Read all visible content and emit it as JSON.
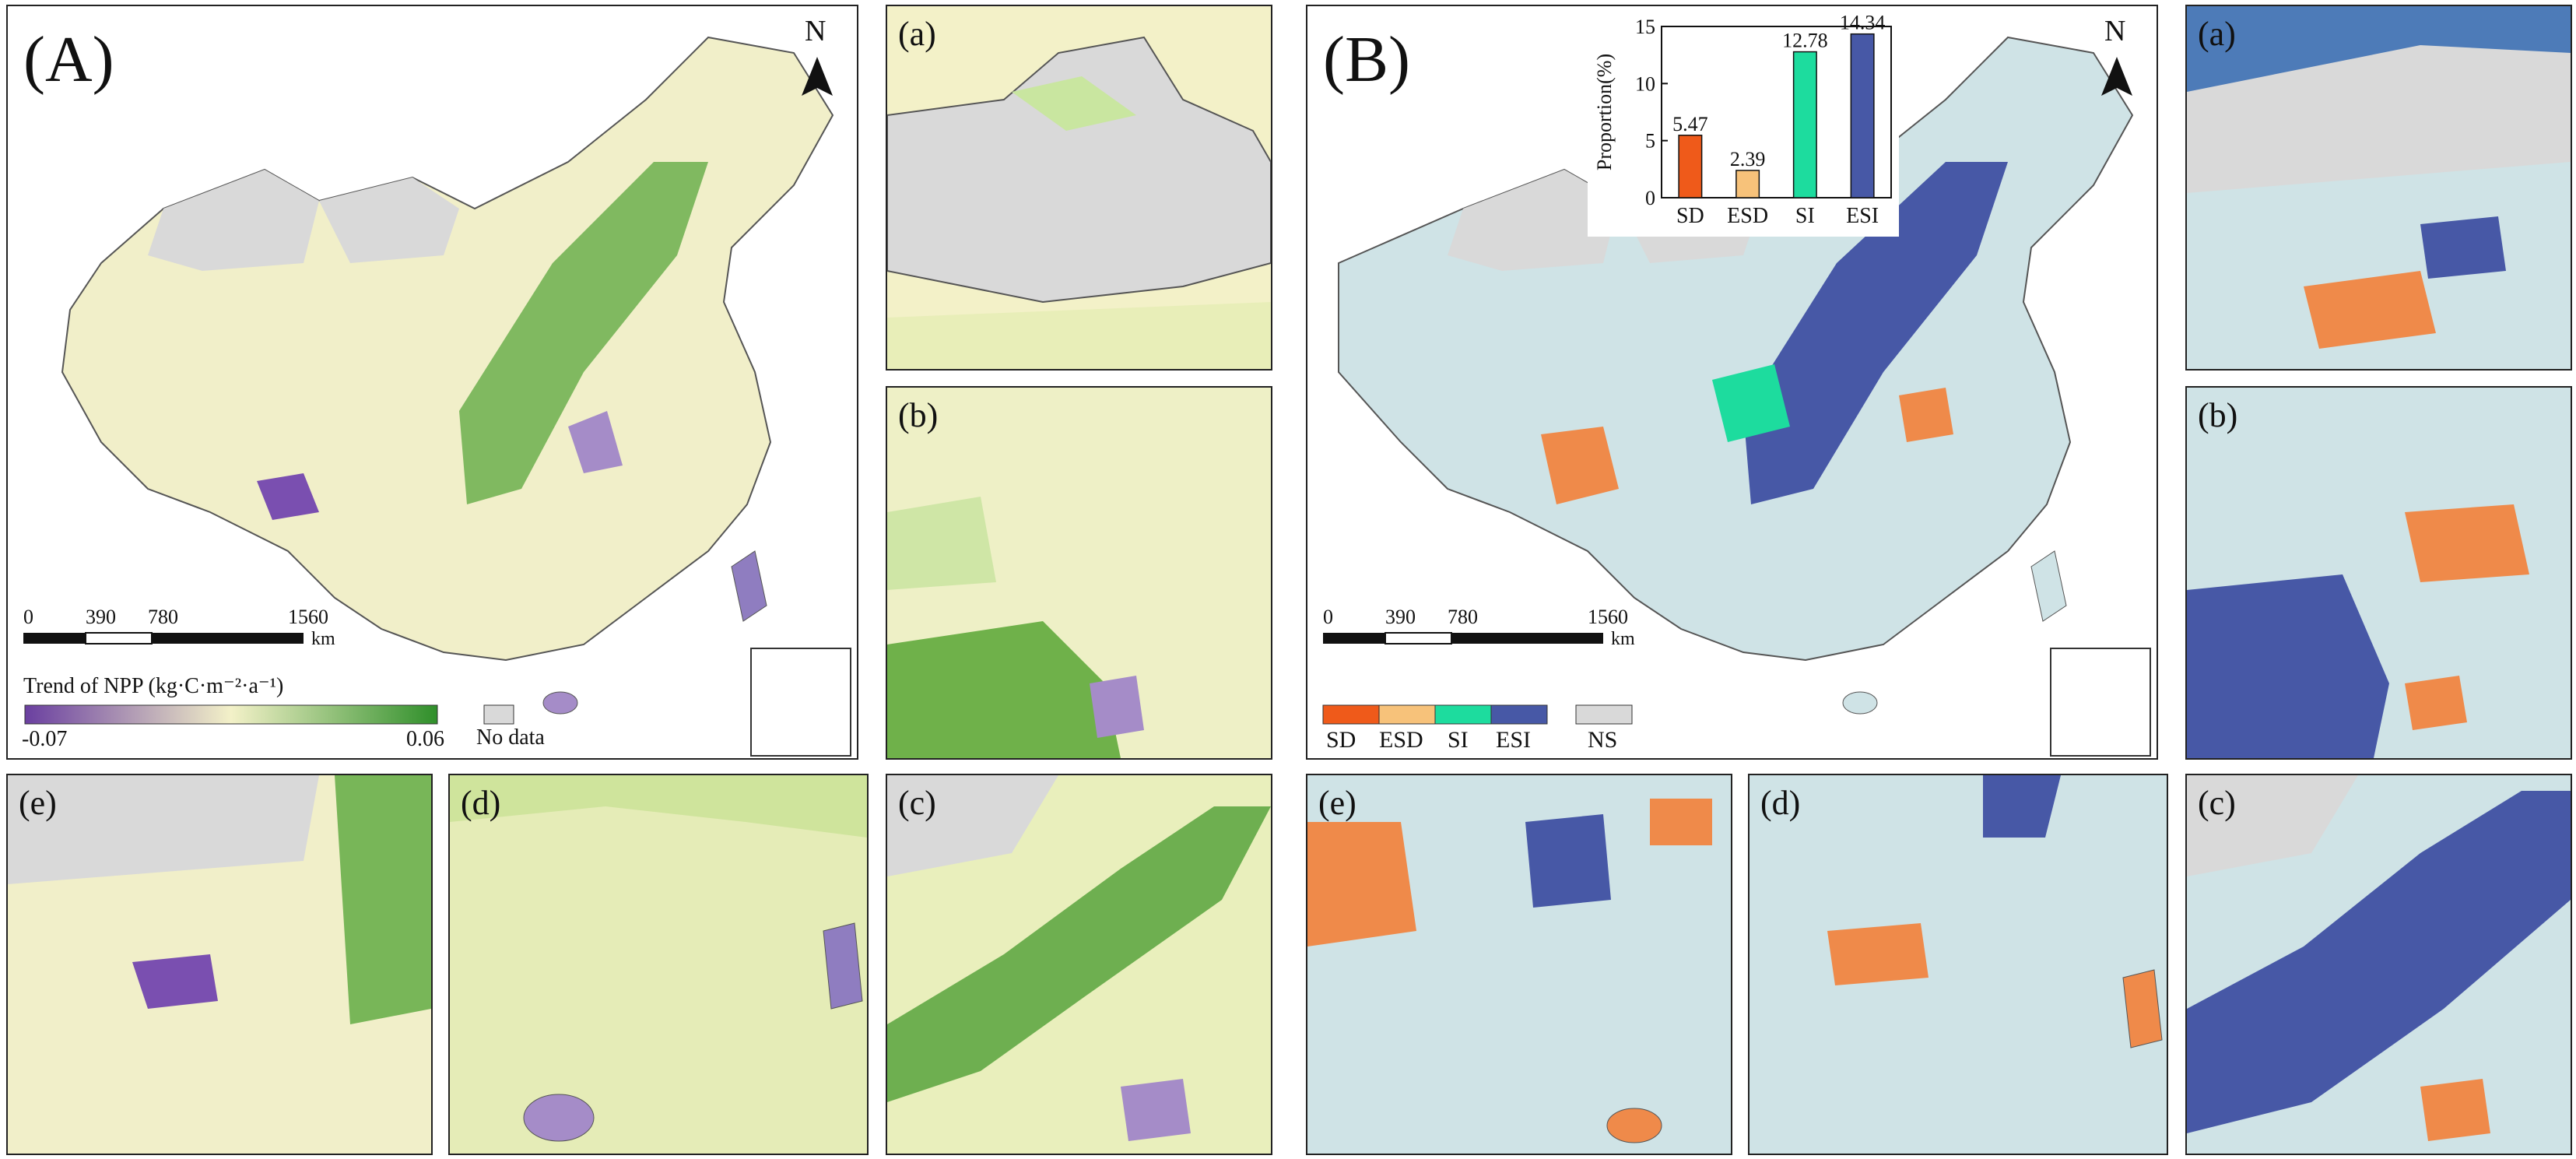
{
  "colors": {
    "npp_low": "#6a3fa0",
    "npp_mid": "#f3f1c8",
    "npp_high": "#2f8f2a",
    "nodata": "#d9d9d9",
    "sd": "#ef5a1a",
    "esd": "#f7c27a",
    "si": "#1ddc9e",
    "esi": "#4758a6",
    "ns": "#d9d9d9"
  },
  "panelA": {
    "label": "(A)",
    "north": "N",
    "scale": {
      "ticks": [
        "0",
        "390",
        "780",
        "1560"
      ],
      "unit": "km"
    },
    "legend": {
      "title": "Trend of NPP (kg·C·m⁻²·a⁻¹)",
      "min": "-0.07",
      "max": "0.06",
      "nodata": "No data"
    }
  },
  "panelB": {
    "label": "(B)",
    "north": "N",
    "scale": {
      "ticks": [
        "0",
        "390",
        "780",
        "1560"
      ],
      "unit": "km"
    },
    "legend": {
      "items": [
        "SD",
        "ESD",
        "SI",
        "ESI",
        "NS"
      ]
    }
  },
  "inset_labels": {
    "a": "(a)",
    "b": "(b)",
    "c": "(c)",
    "d": "(d)",
    "e": "(e)"
  },
  "chart_data": {
    "type": "bar",
    "title": "",
    "xlabel": "",
    "ylabel": "Proportion(%)",
    "categories": [
      "SD",
      "ESD",
      "SI",
      "ESI"
    ],
    "values": [
      5.47,
      2.39,
      12.78,
      14.34
    ],
    "data_labels": [
      "5.47",
      "2.39",
      "12.78",
      "14.34"
    ],
    "ylim": [
      0,
      15
    ],
    "yticks": [
      "0",
      "5",
      "10",
      "15"
    ],
    "colors": [
      "#ef5a1a",
      "#f7c27a",
      "#1ddc9e",
      "#4758a6"
    ]
  }
}
